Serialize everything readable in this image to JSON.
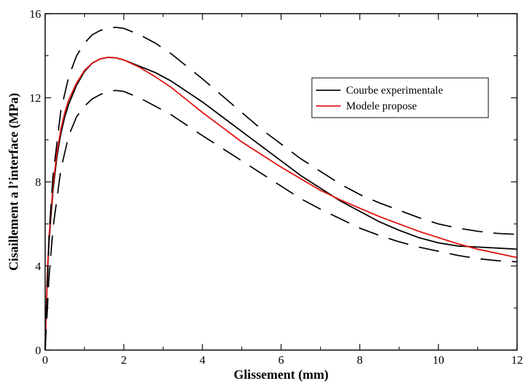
{
  "chart_data": {
    "type": "line",
    "title": "",
    "xlabel": "Glissement (mm)",
    "ylabel": "Cisaillement a l’interface (MPa)",
    "xlim": [
      0,
      12
    ],
    "ylim": [
      0,
      16
    ],
    "xticks": [
      "0",
      "2",
      "4",
      "6",
      "8",
      "10",
      "12"
    ],
    "yticks": [
      "0",
      "4",
      "8",
      "12",
      "16"
    ],
    "grid": false,
    "legend_position": "top-right",
    "series": [
      {
        "name": "Courbe experimentale",
        "color": "#000000",
        "style": "solid",
        "x": [
          0,
          0.05,
          0.1,
          0.2,
          0.3,
          0.4,
          0.5,
          0.6,
          0.8,
          1.0,
          1.2,
          1.4,
          1.6,
          1.8,
          2.0,
          2.4,
          2.8,
          3.2,
          3.6,
          4.0,
          4.5,
          5.0,
          5.5,
          6.0,
          6.5,
          7.0,
          7.5,
          8.0,
          8.5,
          9.0,
          9.5,
          10.0,
          10.5,
          11.0,
          11.5,
          12.0
        ],
        "y": [
          0,
          3.2,
          5.2,
          7.6,
          9.2,
          10.3,
          11.1,
          11.7,
          12.6,
          13.25,
          13.65,
          13.85,
          13.92,
          13.9,
          13.8,
          13.5,
          13.2,
          12.8,
          12.3,
          11.8,
          11.1,
          10.4,
          9.7,
          9.0,
          8.3,
          7.7,
          7.1,
          6.6,
          6.1,
          5.7,
          5.35,
          5.1,
          4.95,
          4.9,
          4.85,
          4.8
        ]
      },
      {
        "name": "Modele propose",
        "color": "#e0120f",
        "style": "solid",
        "x": [
          0,
          0.05,
          0.1,
          0.2,
          0.3,
          0.4,
          0.5,
          0.6,
          0.8,
          1.0,
          1.2,
          1.4,
          1.6,
          1.8,
          2.0,
          2.4,
          2.8,
          3.2,
          3.6,
          4.0,
          4.5,
          5.0,
          5.5,
          6.0,
          6.5,
          7.0,
          7.5,
          8.0,
          8.5,
          9.0,
          9.5,
          10.0,
          10.5,
          11.0,
          11.5,
          12.0
        ],
        "y": [
          0,
          3.4,
          5.4,
          7.8,
          9.4,
          10.5,
          11.3,
          11.9,
          12.7,
          13.3,
          13.65,
          13.85,
          13.93,
          13.9,
          13.8,
          13.45,
          13.0,
          12.5,
          11.9,
          11.3,
          10.6,
          9.9,
          9.3,
          8.7,
          8.15,
          7.6,
          7.15,
          6.75,
          6.35,
          6.0,
          5.65,
          5.35,
          5.05,
          4.8,
          4.6,
          4.4
        ]
      },
      {
        "color": "#000000",
        "style": "dashed",
        "x": [
          0,
          0.1,
          0.2,
          0.4,
          0.6,
          0.8,
          1.0,
          1.2,
          1.4,
          1.6,
          1.8,
          2.0,
          2.4,
          2.8,
          3.2,
          3.6,
          4.0,
          4.5,
          5.0,
          5.5,
          6.0,
          6.5,
          7.0,
          7.5,
          8.0,
          8.5,
          9.0,
          9.5,
          10.0,
          10.5,
          11.0,
          11.5,
          12.0
        ],
        "y": [
          0,
          5.5,
          8.3,
          11.4,
          13.0,
          14.0,
          14.6,
          15.0,
          15.2,
          15.32,
          15.35,
          15.3,
          15.0,
          14.6,
          14.1,
          13.5,
          12.9,
          12.1,
          11.3,
          10.5,
          9.8,
          9.1,
          8.5,
          7.9,
          7.4,
          7.0,
          6.65,
          6.3,
          6.0,
          5.8,
          5.65,
          5.55,
          5.5
        ]
      },
      {
        "color": "#000000",
        "style": "dashed",
        "x": [
          0,
          0.1,
          0.2,
          0.4,
          0.6,
          0.8,
          1.0,
          1.2,
          1.4,
          1.6,
          1.8,
          2.0,
          2.4,
          2.8,
          3.2,
          3.6,
          4.0,
          4.5,
          5.0,
          5.5,
          6.0,
          6.5,
          7.0,
          7.5,
          8.0,
          8.5,
          9.0,
          9.5,
          10.0,
          10.5,
          11.0,
          11.5,
          12.0
        ],
        "y": [
          0,
          3.5,
          5.8,
          8.6,
          10.2,
          11.1,
          11.6,
          11.95,
          12.15,
          12.3,
          12.35,
          12.3,
          12.0,
          11.6,
          11.2,
          10.7,
          10.2,
          9.6,
          9.0,
          8.4,
          7.8,
          7.2,
          6.7,
          6.25,
          5.8,
          5.45,
          5.15,
          4.9,
          4.7,
          4.5,
          4.35,
          4.25,
          4.2
        ]
      }
    ]
  }
}
